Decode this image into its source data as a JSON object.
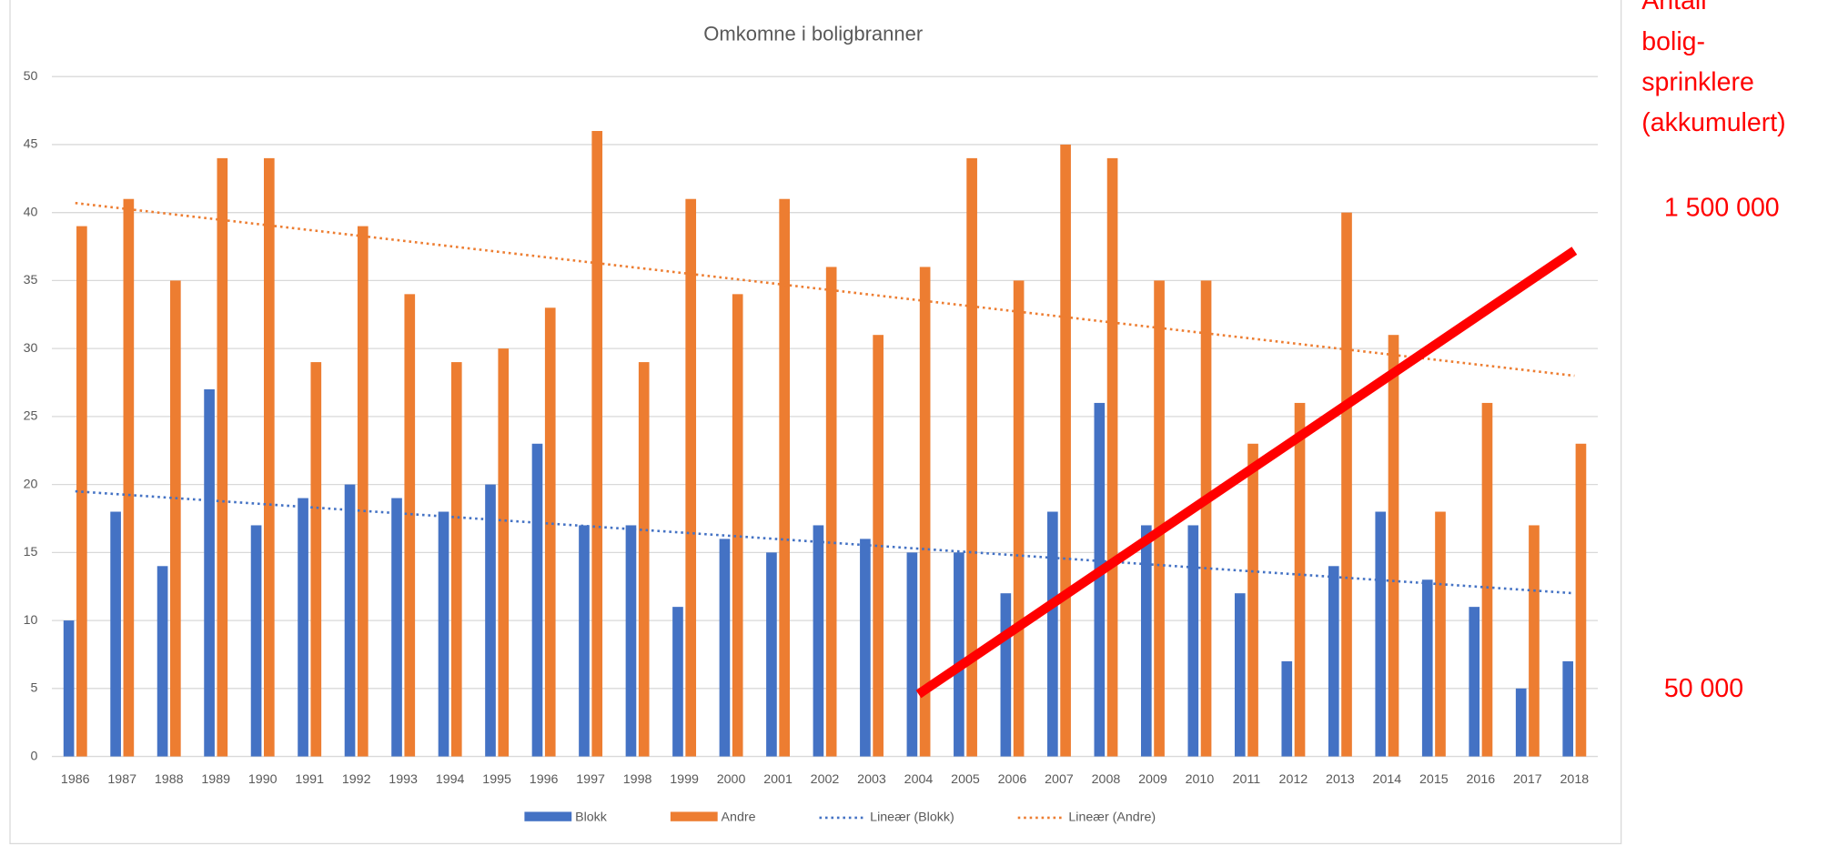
{
  "chart_data": {
    "type": "bar",
    "title": "Omkomne i boligbranner",
    "categories": [
      "1986",
      "1987",
      "1988",
      "1989",
      "1990",
      "1991",
      "1992",
      "1993",
      "1994",
      "1995",
      "1996",
      "1997",
      "1998",
      "1999",
      "2000",
      "2001",
      "2002",
      "2003",
      "2004",
      "2005",
      "2006",
      "2007",
      "2008",
      "2009",
      "2010",
      "2011",
      "2012",
      "2013",
      "2014",
      "2015",
      "2016",
      "2017",
      "2018"
    ],
    "series": [
      {
        "name": "Blokk",
        "color": "#4472c4",
        "type": "bar",
        "values": [
          10,
          18,
          14,
          27,
          17,
          19,
          20,
          19,
          18,
          20,
          23,
          17,
          17,
          11,
          16,
          15,
          17,
          16,
          15,
          15,
          12,
          18,
          26,
          17,
          17,
          12,
          7,
          14,
          18,
          13,
          11,
          5,
          7
        ]
      },
      {
        "name": "Andre",
        "color": "#ed7d31",
        "type": "bar",
        "values": [
          39,
          41,
          35,
          44,
          44,
          29,
          39,
          34,
          29,
          30,
          33,
          46,
          29,
          41,
          34,
          41,
          36,
          31,
          36,
          44,
          35,
          45,
          44,
          35,
          35,
          23,
          26,
          40,
          31,
          18,
          26,
          17,
          23
        ]
      },
      {
        "name": "Lineær (Blokk)",
        "color": "#4472c4",
        "type": "trend",
        "x": [
          "1986",
          "2018"
        ],
        "values": [
          19.5,
          12
        ]
      },
      {
        "name": "Lineær (Andre)",
        "color": "#ed7d31",
        "type": "trend",
        "x": [
          "1986",
          "2018"
        ],
        "values": [
          40.7,
          28
        ]
      },
      {
        "color": "#ff0000",
        "type": "line",
        "axis": "y2",
        "x": [
          "2004",
          "2018"
        ],
        "values": [
          38000,
          1375000
        ]
      }
    ],
    "ylim": [
      0,
      50
    ],
    "yticks": [
      0,
      5,
      10,
      15,
      20,
      25,
      30,
      35,
      40,
      45,
      50
    ],
    "y2lim": [
      -150000,
      1900000
    ],
    "y2ticks": [
      {
        "value": 50000,
        "label": "50 000"
      },
      {
        "value": 1500000,
        "label": "1 500 000"
      }
    ],
    "y2label": [
      "Antall",
      "bolig-",
      "sprinklere",
      "(akkumulert)"
    ],
    "grid": true,
    "legend": "bottom"
  }
}
